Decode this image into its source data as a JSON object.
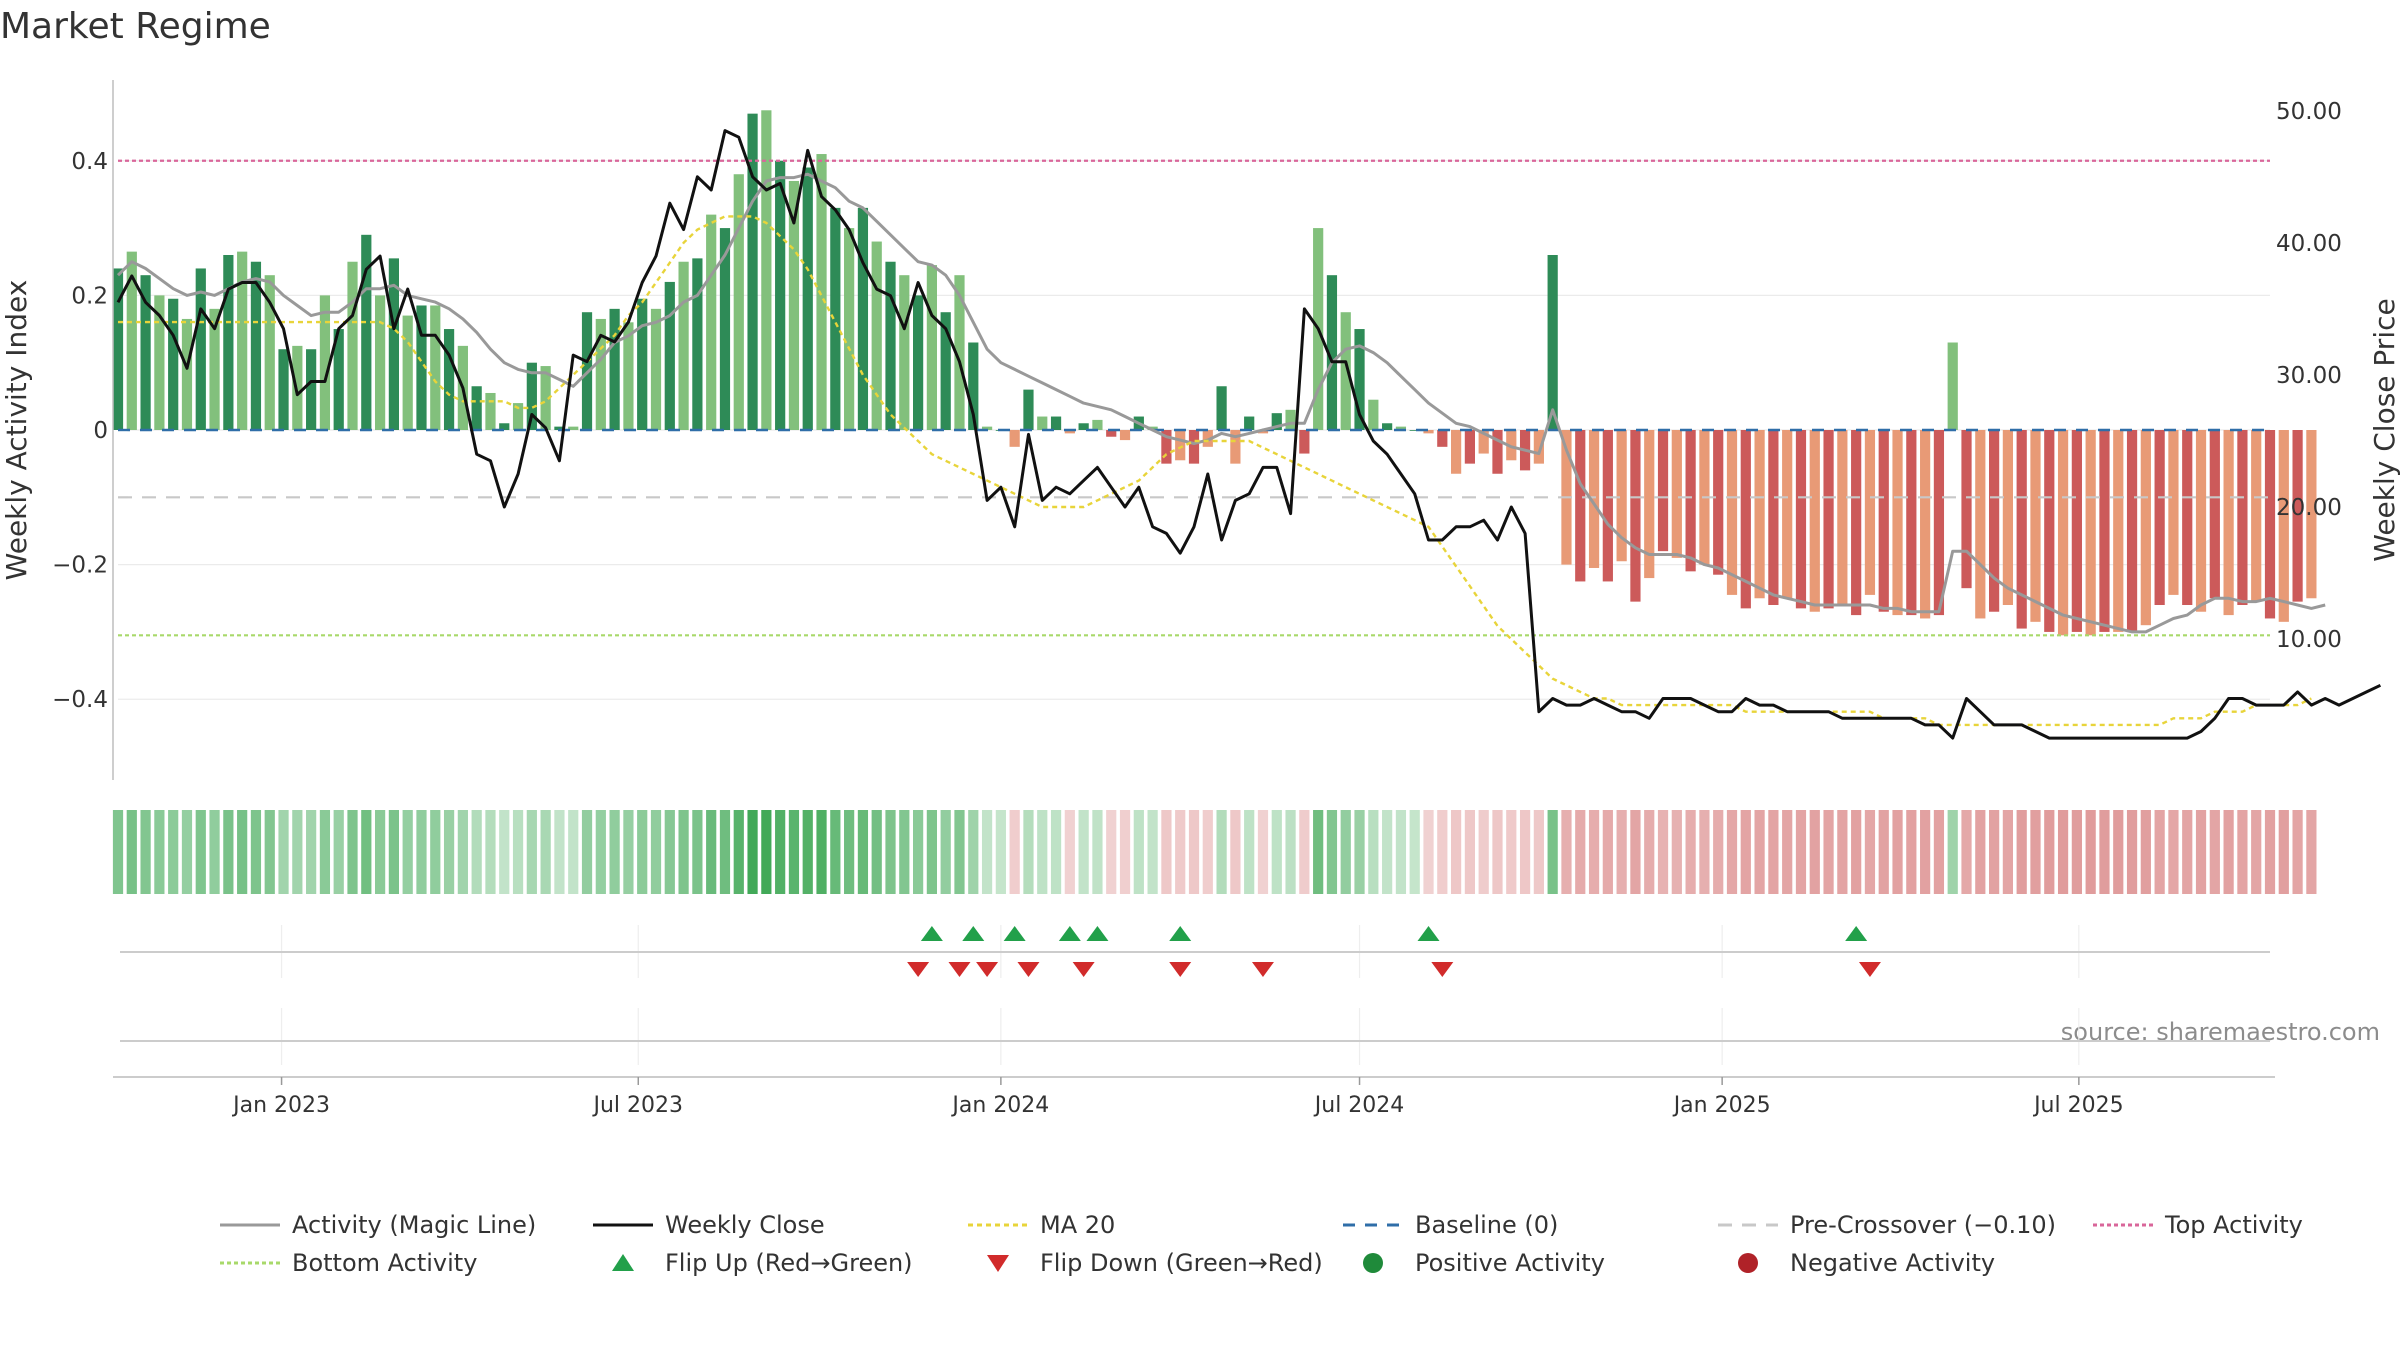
{
  "chart_data": {
    "type": "bar",
    "title": "Market Regime",
    "ylabel_left": "Weekly Activity Index",
    "ylabel_right": "Weekly Close Price",
    "y_left_range": [
      -0.52,
      0.52
    ],
    "y_right_range": [
      -0.67,
      52.33
    ],
    "y_left_ticks": [
      {
        "value": 0.4,
        "label": "0.4"
      },
      {
        "value": 0.2,
        "label": "0.2"
      },
      {
        "value": 0,
        "label": "0"
      },
      {
        "value": -0.2,
        "label": "−0.2"
      },
      {
        "value": -0.4,
        "label": "−0.4"
      }
    ],
    "y_right_ticks": [
      {
        "value": 50,
        "label": "50.00"
      },
      {
        "value": 40,
        "label": "40.00"
      },
      {
        "value": 30,
        "label": "30.00"
      },
      {
        "value": 20,
        "label": "20.00"
      },
      {
        "value": 10,
        "label": "10.00"
      }
    ],
    "x_range": [
      "2022-10-10",
      "2025-10-06"
    ],
    "x_ticks": [
      {
        "date": "2023-01-01",
        "label": "Jan 2023"
      },
      {
        "date": "2023-07-01",
        "label": "Jul 2023"
      },
      {
        "date": "2024-01-01",
        "label": "Jan 2024"
      },
      {
        "date": "2024-07-01",
        "label": "Jul 2024"
      },
      {
        "date": "2025-01-01",
        "label": "Jan 2025"
      },
      {
        "date": "2025-07-01",
        "label": "Jul 2025"
      }
    ],
    "reference_lines": {
      "top_activity": 0.4,
      "bottom_activity": -0.305,
      "baseline": 0,
      "pre_crossover": -0.1
    },
    "grid": true,
    "legend_position": "bottom",
    "start_date": "2022-10-10",
    "week_interval_days": 7,
    "activity": [
      0.24,
      0.265,
      0.23,
      0.2,
      0.195,
      0.165,
      0.24,
      0.18,
      0.26,
      0.265,
      0.25,
      0.23,
      0.12,
      0.125,
      0.12,
      0.2,
      0.15,
      0.25,
      0.29,
      0.2,
      0.255,
      0.17,
      0.185,
      0.185,
      0.15,
      0.125,
      0.065,
      0.055,
      0.01,
      0.04,
      0.1,
      0.095,
      0.005,
      0.005,
      0.175,
      0.165,
      0.18,
      0.16,
      0.195,
      0.18,
      0.22,
      0.25,
      0.255,
      0.32,
      0.3,
      0.38,
      0.47,
      0.475,
      0.4,
      0.37,
      0.39,
      0.41,
      0.33,
      0.3,
      0.33,
      0.28,
      0.25,
      0.23,
      0.2,
      0.245,
      0.175,
      0.23,
      0.13,
      0.005,
      0.0,
      -0.025,
      0.06,
      0.02,
      0.02,
      -0.005,
      0.01,
      0.015,
      -0.01,
      -0.015,
      0.02,
      0.005,
      -0.05,
      -0.045,
      -0.05,
      -0.025,
      0.065,
      -0.05,
      0.02,
      -0.005,
      0.025,
      0.03,
      -0.035,
      0.3,
      0.23,
      0.175,
      0.15,
      0.045,
      0.01,
      0.005,
      0.0,
      -0.005,
      -0.025,
      -0.065,
      -0.05,
      -0.035,
      -0.065,
      -0.045,
      -0.06,
      -0.05,
      0.26,
      -0.2,
      -0.225,
      -0.205,
      -0.225,
      -0.195,
      -0.255,
      -0.22,
      -0.18,
      -0.19,
      -0.21,
      -0.2,
      -0.215,
      -0.245,
      -0.265,
      -0.25,
      -0.26,
      -0.25,
      -0.265,
      -0.27,
      -0.265,
      -0.26,
      -0.275,
      -0.245,
      -0.27,
      -0.275,
      -0.275,
      -0.28,
      -0.275,
      0.13,
      -0.235,
      -0.28,
      -0.27,
      -0.26,
      -0.295,
      -0.285,
      -0.3,
      -0.305,
      -0.3,
      -0.305,
      -0.3,
      -0.3,
      -0.3,
      -0.29,
      -0.26,
      -0.245,
      -0.26,
      -0.27,
      -0.25,
      -0.275,
      -0.26,
      -0.255,
      -0.28,
      -0.285,
      -0.255,
      -0.25
    ],
    "magic_line": [
      0.23,
      0.25,
      0.24,
      0.225,
      0.21,
      0.2,
      0.205,
      0.2,
      0.21,
      0.22,
      0.225,
      0.22,
      0.2,
      0.185,
      0.17,
      0.175,
      0.175,
      0.19,
      0.21,
      0.21,
      0.215,
      0.2,
      0.195,
      0.19,
      0.18,
      0.165,
      0.145,
      0.12,
      0.1,
      0.09,
      0.085,
      0.085,
      0.075,
      0.065,
      0.085,
      0.105,
      0.13,
      0.14,
      0.155,
      0.16,
      0.17,
      0.19,
      0.2,
      0.23,
      0.26,
      0.3,
      0.34,
      0.37,
      0.375,
      0.375,
      0.38,
      0.37,
      0.36,
      0.34,
      0.33,
      0.31,
      0.29,
      0.27,
      0.25,
      0.245,
      0.23,
      0.2,
      0.16,
      0.12,
      0.1,
      0.09,
      0.08,
      0.07,
      0.06,
      0.05,
      0.04,
      0.035,
      0.03,
      0.02,
      0.01,
      0.0,
      -0.01,
      -0.015,
      -0.02,
      -0.015,
      -0.005,
      -0.01,
      -0.005,
      -0.0,
      0.005,
      0.01,
      0.01,
      0.06,
      0.1,
      0.12,
      0.125,
      0.115,
      0.1,
      0.08,
      0.06,
      0.04,
      0.025,
      0.01,
      0.005,
      -0.005,
      -0.015,
      -0.025,
      -0.03,
      -0.035,
      0.03,
      -0.03,
      -0.08,
      -0.11,
      -0.14,
      -0.16,
      -0.175,
      -0.185,
      -0.185,
      -0.185,
      -0.19,
      -0.2,
      -0.205,
      -0.215,
      -0.225,
      -0.235,
      -0.245,
      -0.25,
      -0.255,
      -0.26,
      -0.26,
      -0.26,
      -0.26,
      -0.26,
      -0.265,
      -0.265,
      -0.27,
      -0.27,
      -0.27,
      -0.18,
      -0.18,
      -0.2,
      -0.22,
      -0.235,
      -0.245,
      -0.255,
      -0.265,
      -0.275,
      -0.28,
      -0.285,
      -0.29,
      -0.295,
      -0.3,
      -0.3,
      -0.29,
      -0.28,
      -0.275,
      -0.26,
      -0.25,
      -0.25,
      -0.255,
      -0.255,
      -0.25,
      -0.255,
      -0.26,
      -0.265,
      -0.26
    ],
    "weekly_close": [
      35.5,
      37.5,
      35.5,
      34.5,
      33,
      30.5,
      35,
      33.5,
      36.5,
      37,
      37,
      35.5,
      33.5,
      28.5,
      29.5,
      29.5,
      33.5,
      34.5,
      38,
      39,
      33.5,
      36.5,
      33,
      33,
      31.5,
      29,
      24,
      23.5,
      20,
      22.5,
      27,
      26,
      23.5,
      31.5,
      31,
      33,
      32.5,
      34,
      37,
      39,
      43,
      41,
      45,
      44,
      48.5,
      48,
      45,
      44,
      44.5,
      41.5,
      47,
      43.5,
      42.5,
      41,
      38.5,
      36.5,
      36,
      33.5,
      37,
      34.5,
      33.5,
      31,
      27,
      20.5,
      21.5,
      18.5,
      25.5,
      20.5,
      21.5,
      21,
      22,
      23,
      21.5,
      20,
      21.5,
      18.5,
      18,
      16.5,
      18.5,
      22.5,
      17.5,
      20.5,
      21,
      23,
      23,
      19.5,
      35,
      33.5,
      31,
      31,
      27,
      25,
      24,
      22.5,
      21,
      17.5,
      17.5,
      18.5,
      18.5,
      19,
      17.5,
      20,
      18,
      4.5,
      5.5,
      5,
      5,
      5.5,
      5,
      4.5,
      4.5,
      4,
      5.5,
      5.5,
      5.5,
      5,
      4.5,
      4.5,
      5.5,
      5,
      5,
      4.5,
      4.5,
      4.5,
      4.5,
      4,
      4,
      4,
      4,
      4,
      4,
      3.5,
      3.5,
      2.5,
      5.5,
      4.5,
      3.5,
      3.5,
      3.5,
      3,
      2.5,
      2.5,
      2.5,
      2.5,
      2.5,
      2.5,
      2.5,
      2.5,
      2.5,
      2.5,
      2.5,
      3,
      4,
      5.5,
      5.5,
      5,
      5,
      5,
      6,
      5,
      5.5,
      5,
      5.5,
      6,
      6.5
    ],
    "ma20": [
      34,
      34,
      34,
      34,
      34,
      34,
      34,
      34,
      34,
      34,
      34,
      34,
      34,
      34,
      34,
      34,
      34,
      34,
      34,
      34,
      33.5,
      32.5,
      31,
      29.5,
      28.5,
      28,
      28,
      28,
      28,
      27.5,
      27.5,
      28,
      29,
      30,
      31,
      32,
      33,
      34.5,
      35.5,
      37,
      38.5,
      40,
      41,
      41.5,
      42,
      42,
      42,
      41.5,
      40.5,
      39.5,
      38,
      36,
      34,
      32,
      30,
      28.5,
      27,
      26,
      25,
      24,
      23.5,
      23,
      22.5,
      22,
      21.5,
      21,
      20.5,
      20,
      20,
      20,
      20,
      20.5,
      21,
      21.5,
      22,
      23,
      24,
      24.5,
      25,
      25,
      25,
      25,
      25,
      24.5,
      24,
      23.5,
      23,
      22.5,
      22,
      21.5,
      21,
      20.5,
      20,
      19.5,
      19,
      18.5,
      17,
      15.5,
      14,
      12.5,
      11,
      10,
      9,
      8,
      7,
      6.5,
      6,
      5.5,
      5.5,
      5,
      5,
      5,
      5,
      5,
      5,
      5,
      5,
      5,
      4.5,
      4.5,
      4.5,
      4.5,
      4.5,
      4.5,
      4.5,
      4.5,
      4.5,
      4.5,
      4,
      4,
      4,
      4,
      3.5,
      3.5,
      3.5,
      3.5,
      3.5,
      3.5,
      3.5,
      3.5,
      3.5,
      3.5,
      3.5,
      3.5,
      3.5,
      3.5,
      3.5,
      3.5,
      3.5,
      4,
      4,
      4,
      4.5,
      4.5,
      4.5,
      5,
      5,
      5,
      5,
      5.5
    ],
    "regime_strip_first_date": "2022-10-10",
    "flip_up_dates": [
      "2023-11-27",
      "2023-12-18",
      "2024-01-08",
      "2024-02-05",
      "2024-02-19",
      "2024-04-01",
      "2024-08-05",
      "2025-03-10"
    ],
    "flip_down_dates": [
      "2023-11-20",
      "2023-12-11",
      "2023-12-25",
      "2024-01-15",
      "2024-02-12",
      "2024-04-01",
      "2024-05-13",
      "2024-08-12",
      "2025-03-17"
    ],
    "source": "source: sharemaestro.com",
    "legend": [
      {
        "label": "Activity (Magic Line)",
        "kind": "line",
        "color": "#999999",
        "dash": ""
      },
      {
        "label": "Weekly Close",
        "kind": "line",
        "color": "#111111",
        "dash": ""
      },
      {
        "label": "MA 20",
        "kind": "line",
        "color": "#e8d43a",
        "dash": "5,4"
      },
      {
        "label": "Baseline (0)",
        "kind": "line",
        "color": "#2f6ea8",
        "dash": "12,10"
      },
      {
        "label": "Pre-Crossover (−0.10)",
        "kind": "line",
        "color": "#c8c8c8",
        "dash": "14,10"
      },
      {
        "label": "Top Activity",
        "kind": "line",
        "color": "#d9669a",
        "dash": "4,3"
      },
      {
        "label": "Bottom Activity",
        "kind": "line",
        "color": "#a8d96a",
        "dash": "4,3"
      },
      {
        "label": "Flip Up (Red→Green)",
        "kind": "tri-up",
        "color": "#22a04a",
        "dash": ""
      },
      {
        "label": "Flip Down (Green→Red)",
        "kind": "tri-down",
        "color": "#d12b2b",
        "dash": ""
      },
      {
        "label": "Positive Activity",
        "kind": "dot",
        "color": "#1f8a3a",
        "dash": ""
      },
      {
        "label": "Negative Activity",
        "kind": "dot",
        "color": "#b02228",
        "dash": ""
      }
    ],
    "colors": {
      "bar_pos_dark": "#2e8b57",
      "bar_pos_light": "#82c07c",
      "bar_neg_dark": "#cc5a5a",
      "bar_neg_light": "#e89a76",
      "top_line": "#d9669a",
      "bottom_line": "#a8d96a",
      "baseline": "#2f6ea8",
      "pre_crossover": "#c8c8c8",
      "magic": "#999999",
      "close": "#111111",
      "ma": "#e8d43a",
      "flip_up": "#22a04a",
      "flip_down": "#d12b2b"
    }
  }
}
